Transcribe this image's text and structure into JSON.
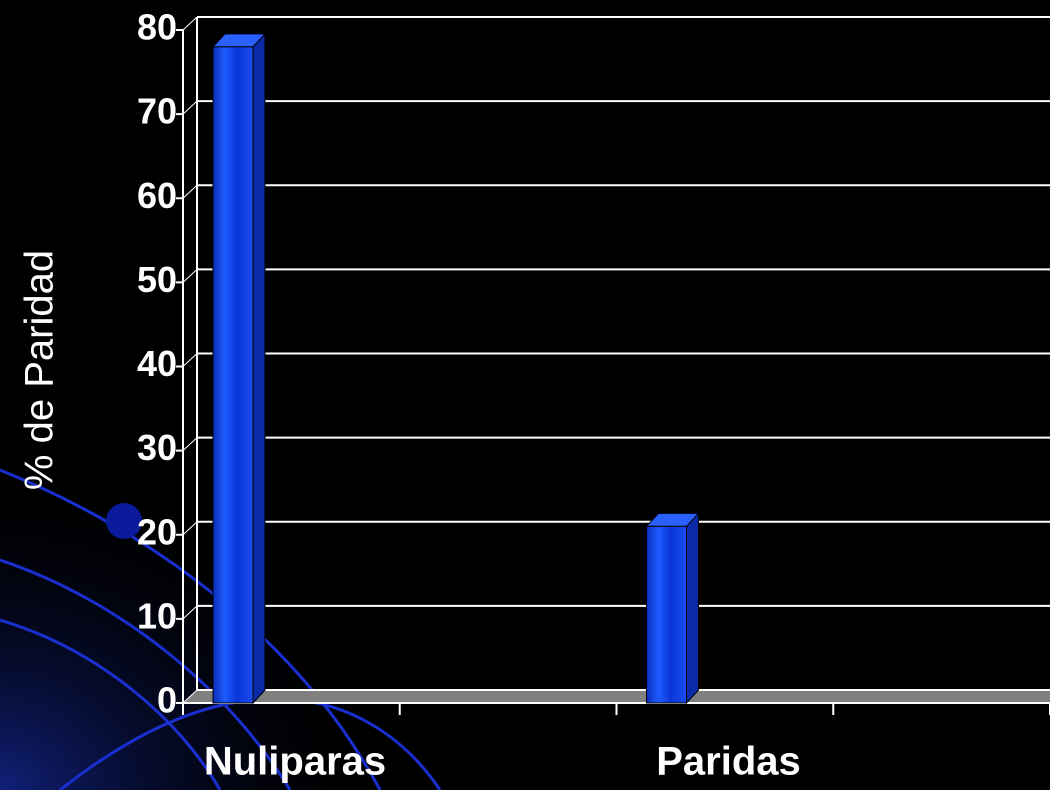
{
  "chart_data": {
    "type": "bar",
    "y_label": "% de Paridad",
    "categories": [
      "Nuliparas",
      "Paridas"
    ],
    "values": [
      78,
      21
    ],
    "color": "#1a4cf0",
    "ylim": [
      0,
      80
    ],
    "yticks": [
      0,
      10,
      20,
      30,
      40,
      50,
      60,
      70,
      80
    ],
    "grid": true
  }
}
